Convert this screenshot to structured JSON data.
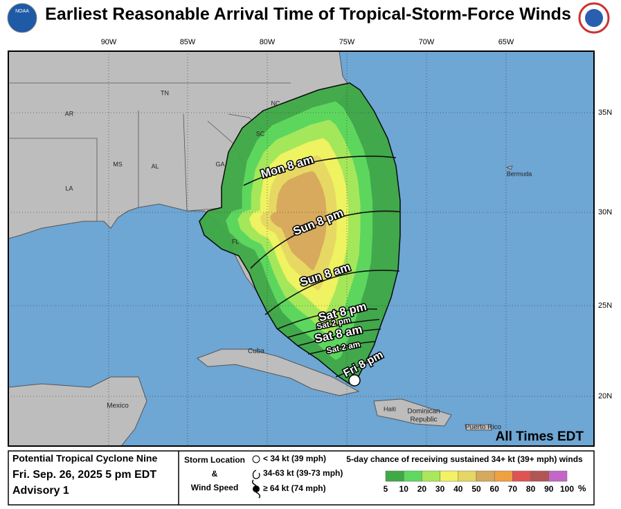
{
  "header": {
    "title": "Earliest Reasonable Arrival Time of Tropical-Storm-Force Winds",
    "agency": "NOAA"
  },
  "map": {
    "lon_labels": [
      "90W",
      "85W",
      "80W",
      "75W",
      "70W",
      "65W"
    ],
    "lat_labels": [
      "35N",
      "30N",
      "25N",
      "20N"
    ],
    "places": [
      "AR",
      "TN",
      "NC",
      "SC",
      "GA",
      "AL",
      "MS",
      "LA",
      "FL",
      "Bermuda",
      "Cuba",
      "Mexico",
      "Haiti",
      "Dominican",
      "Republic",
      "Puerto Rico"
    ],
    "isochrones": [
      "Mon 8 am",
      "Sun 8 pm",
      "Sun 8 am",
      "Sat 8 pm",
      "Sat 2 pm",
      "Sat 8 am",
      "Sat 2 am",
      "Fri 8 pm"
    ],
    "note": "All Times EDT"
  },
  "footer": {
    "storm": [
      "Potential Tropical Cyclone Nine",
      "Fri. Sep. 26, 2025  5 pm EDT",
      "Advisory 1"
    ],
    "key": {
      "lines": [
        "Storm Location",
        "&",
        "Wind Speed"
      ],
      "symbols": [
        "< 34 kt (39 mph)",
        "34-63 kt (39-73 mph)",
        "≥ 64 kt (74 mph)"
      ]
    },
    "legend": {
      "title": "5-day chance of receiving sustained 34+ kt (39+ mph) winds",
      "labels": [
        5,
        10,
        20,
        30,
        40,
        50,
        60,
        70,
        80,
        90,
        100
      ],
      "unit": "%",
      "colors": [
        "#3fa945",
        "#5fd85f",
        "#a9e85b",
        "#f2f262",
        "#e6d663",
        "#d6a85d",
        "#f0a040",
        "#df5353",
        "#b25555",
        "#c466c8"
      ]
    }
  }
}
